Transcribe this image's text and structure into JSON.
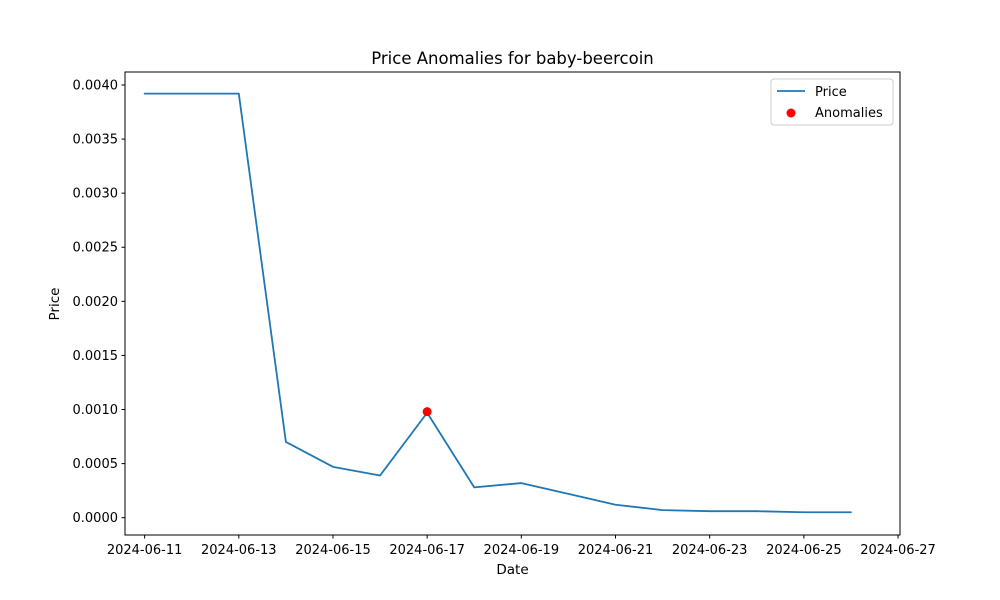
{
  "chart_data": {
    "type": "line",
    "title": "Price Anomalies for baby-beercoin",
    "xlabel": "Date",
    "ylabel": "Price",
    "x": [
      "2024-06-11",
      "2024-06-12",
      "2024-06-13",
      "2024-06-14",
      "2024-06-15",
      "2024-06-16",
      "2024-06-17",
      "2024-06-18",
      "2024-06-19",
      "2024-06-20",
      "2024-06-21",
      "2024-06-22",
      "2024-06-23",
      "2024-06-24",
      "2024-06-25",
      "2024-06-26"
    ],
    "series": [
      {
        "name": "Price",
        "kind": "line",
        "color": "#1f77b4",
        "x": [
          "2024-06-11",
          "2024-06-12",
          "2024-06-13",
          "2024-06-14",
          "2024-06-15",
          "2024-06-16",
          "2024-06-17",
          "2024-06-18",
          "2024-06-19",
          "2024-06-20",
          "2024-06-21",
          "2024-06-22",
          "2024-06-23",
          "2024-06-24",
          "2024-06-25",
          "2024-06-26"
        ],
        "values": [
          0.00392,
          0.00392,
          0.00392,
          0.0007,
          0.00047,
          0.00039,
          0.00097,
          0.00028,
          0.00032,
          0.00022,
          0.00012,
          7e-05,
          6e-05,
          6e-05,
          5e-05,
          5e-05
        ]
      },
      {
        "name": "Anomalies",
        "kind": "scatter",
        "color": "#ff0000",
        "x": [
          "2024-06-17"
        ],
        "values": [
          0.00098
        ]
      }
    ],
    "x_range": [
      "2024-06-10T14:00",
      "2024-06-27T01:00"
    ],
    "ylim": [
      -0.00016,
      0.00412
    ],
    "y_ticks": [
      {
        "value": 0.0,
        "label": "0.0000"
      },
      {
        "value": 0.0005,
        "label": "0.0005"
      },
      {
        "value": 0.001,
        "label": "0.0010"
      },
      {
        "value": 0.0015,
        "label": "0.0015"
      },
      {
        "value": 0.002,
        "label": "0.0020"
      },
      {
        "value": 0.0025,
        "label": "0.0025"
      },
      {
        "value": 0.003,
        "label": "0.0030"
      },
      {
        "value": 0.0035,
        "label": "0.0035"
      },
      {
        "value": 0.004,
        "label": "0.0040"
      }
    ],
    "x_ticks": [
      "2024-06-11",
      "2024-06-13",
      "2024-06-15",
      "2024-06-17",
      "2024-06-19",
      "2024-06-21",
      "2024-06-23",
      "2024-06-25",
      "2024-06-27"
    ],
    "grid": false,
    "legend_position": "top-right"
  }
}
